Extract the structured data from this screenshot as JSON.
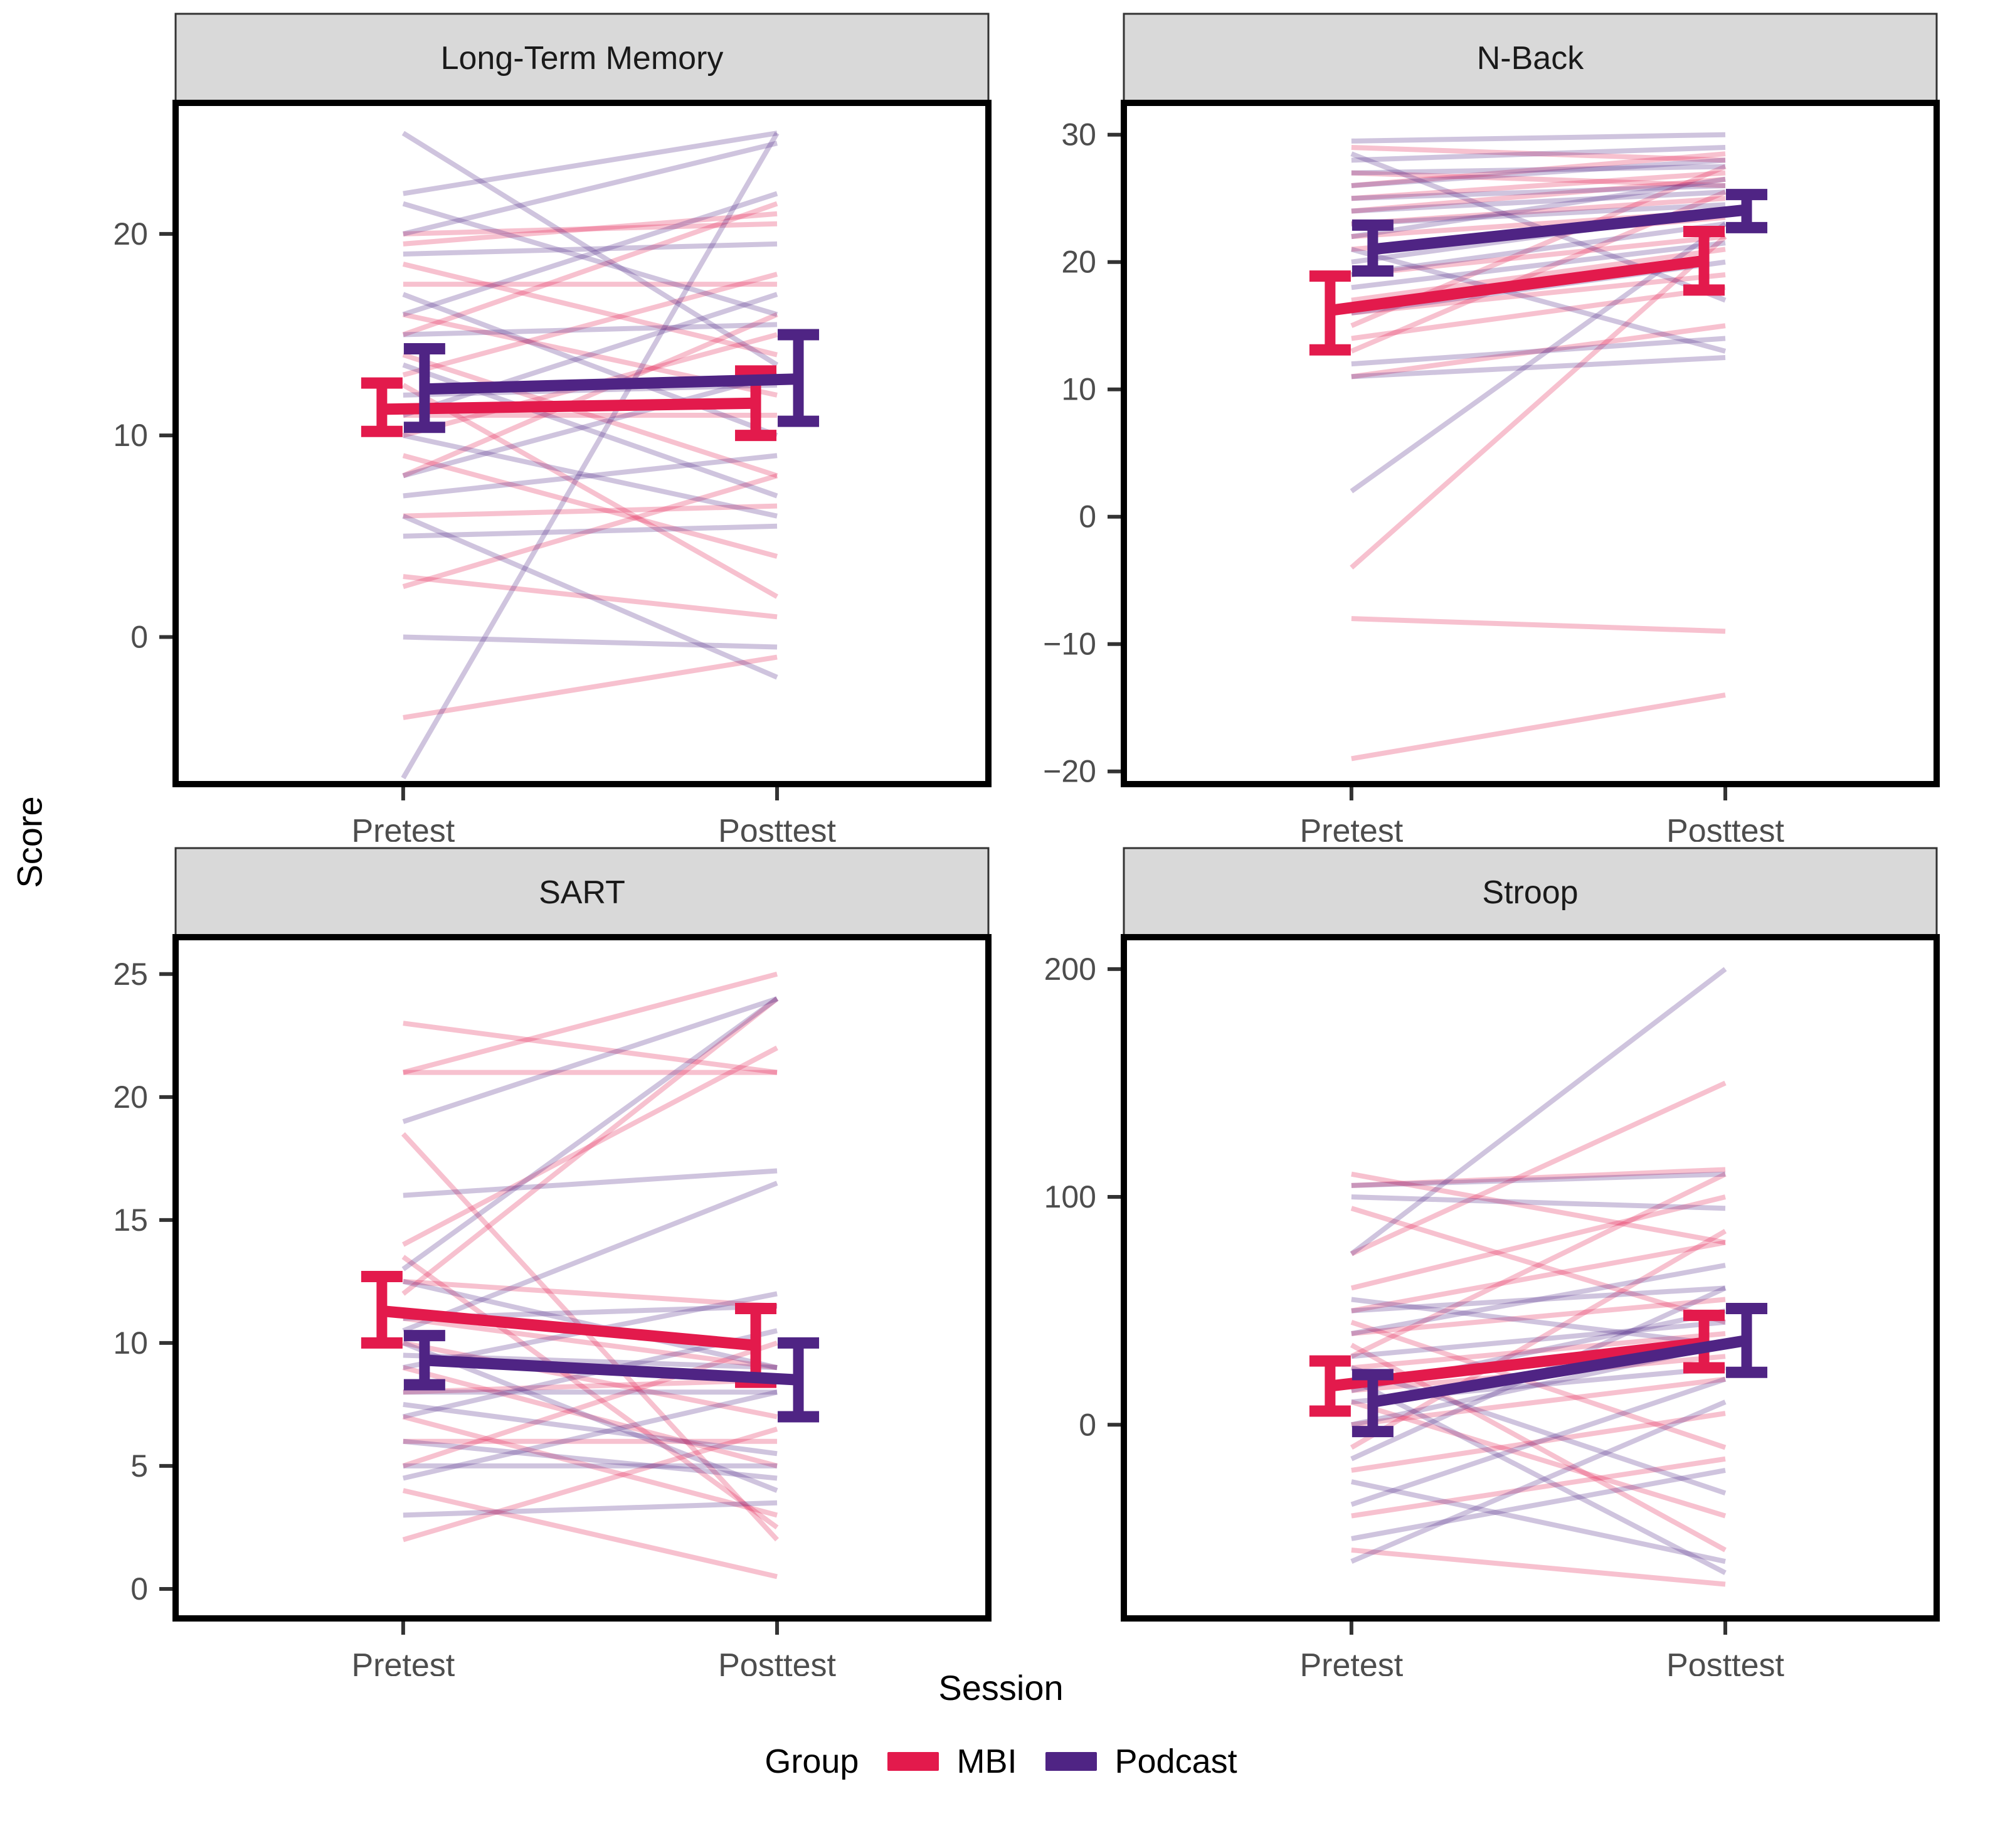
{
  "axes": {
    "y_title": "Score",
    "x_title": "Session",
    "x_categories": [
      "Pretest",
      "Posttest"
    ]
  },
  "legend": {
    "title": "Group",
    "position": "bottom",
    "items": [
      {
        "label": "MBI",
        "color": "#E31A4C"
      },
      {
        "label": "Podcast",
        "color": "#4F2484"
      }
    ]
  },
  "colors": {
    "mbi": "#E31A4C",
    "podcast": "#4F2484",
    "strip_fill": "#D9D9D9",
    "strip_border": "#333333",
    "panel_border": "#000000",
    "tick_text": "#4D4D4D",
    "tick_mark": "#333333"
  },
  "chart_data": [
    {
      "type": "line",
      "title": "Long-Term Memory",
      "xlabel": "Session",
      "ylabel": "Score",
      "x": [
        "Pretest",
        "Posttest"
      ],
      "ylim": [
        -7.3,
        26.5
      ],
      "yticks": [
        0,
        10,
        20
      ],
      "grid": false,
      "means": {
        "MBI": {
          "pre": {
            "m": 11.3,
            "lo": 10.2,
            "hi": 12.6
          },
          "post": {
            "m": 11.6,
            "lo": 10.0,
            "hi": 13.2
          }
        },
        "Podcast": {
          "pre": {
            "m": 12.3,
            "lo": 10.4,
            "hi": 14.3
          },
          "post": {
            "m": 12.8,
            "lo": 10.7,
            "hi": 15.0
          }
        }
      },
      "individuals": [
        {
          "g": "MBI",
          "pre": 19.5,
          "post": 21
        },
        {
          "g": "MBI",
          "pre": 18.5,
          "post": 14
        },
        {
          "g": "MBI",
          "pre": 17.5,
          "post": 17.5
        },
        {
          "g": "MBI",
          "pre": 16,
          "post": 12
        },
        {
          "g": "MBI",
          "pre": 15,
          "post": 21.5
        },
        {
          "g": "MBI",
          "pre": 14,
          "post": 8
        },
        {
          "g": "MBI",
          "pre": 13,
          "post": 18
        },
        {
          "g": "MBI",
          "pre": 12.5,
          "post": 2
        },
        {
          "g": "MBI",
          "pre": 11,
          "post": 11
        },
        {
          "g": "MBI",
          "pre": 10,
          "post": 15
        },
        {
          "g": "MBI",
          "pre": 9,
          "post": 4
        },
        {
          "g": "MBI",
          "pre": 8,
          "post": 16
        },
        {
          "g": "MBI",
          "pre": 6,
          "post": 6.5
        },
        {
          "g": "MBI",
          "pre": 3,
          "post": 1
        },
        {
          "g": "MBI",
          "pre": 2.5,
          "post": 8
        },
        {
          "g": "MBI",
          "pre": -4,
          "post": -1
        },
        {
          "g": "MBI",
          "pre": 20,
          "post": 20.5
        },
        {
          "g": "Podcast",
          "pre": 25,
          "post": 13.5
        },
        {
          "g": "Podcast",
          "pre": 22,
          "post": 25
        },
        {
          "g": "Podcast",
          "pre": 21.5,
          "post": 16
        },
        {
          "g": "Podcast",
          "pre": 20,
          "post": 24.5
        },
        {
          "g": "Podcast",
          "pre": 19,
          "post": 19.5
        },
        {
          "g": "Podcast",
          "pre": 17,
          "post": 10
        },
        {
          "g": "Podcast",
          "pre": 16,
          "post": 22
        },
        {
          "g": "Podcast",
          "pre": 15,
          "post": 15.5
        },
        {
          "g": "Podcast",
          "pre": 13.5,
          "post": 7
        },
        {
          "g": "Podcast",
          "pre": 12,
          "post": 12.5
        },
        {
          "g": "Podcast",
          "pre": 11,
          "post": 17
        },
        {
          "g": "Podcast",
          "pre": 10,
          "post": 6
        },
        {
          "g": "Podcast",
          "pre": 8,
          "post": 13
        },
        {
          "g": "Podcast",
          "pre": 7,
          "post": 9
        },
        {
          "g": "Podcast",
          "pre": 5,
          "post": 5.5
        },
        {
          "g": "Podcast",
          "pre": 0,
          "post": -0.5
        },
        {
          "g": "Podcast",
          "pre": -7,
          "post": 25
        },
        {
          "g": "Podcast",
          "pre": 6,
          "post": -2
        }
      ]
    },
    {
      "type": "line",
      "title": "N-Back",
      "xlabel": "Session",
      "ylabel": "Score",
      "x": [
        "Pretest",
        "Posttest"
      ],
      "ylim": [
        -21,
        32.5
      ],
      "yticks": [
        -20,
        -10,
        0,
        10,
        20,
        30
      ],
      "grid": false,
      "means": {
        "MBI": {
          "pre": {
            "m": 16.2,
            "lo": 13.1,
            "hi": 18.9
          },
          "post": {
            "m": 20.1,
            "lo": 17.8,
            "hi": 22.4
          }
        },
        "Podcast": {
          "pre": {
            "m": 21.0,
            "lo": 19.3,
            "hi": 22.9
          },
          "post": {
            "m": 24.1,
            "lo": 22.7,
            "hi": 25.3
          }
        }
      },
      "individuals": [
        {
          "g": "MBI",
          "pre": 29,
          "post": 28
        },
        {
          "g": "MBI",
          "pre": 27,
          "post": 26
        },
        {
          "g": "MBI",
          "pre": 26,
          "post": 28.5
        },
        {
          "g": "MBI",
          "pre": 25,
          "post": 27
        },
        {
          "g": "MBI",
          "pre": 24,
          "post": 26.5
        },
        {
          "g": "MBI",
          "pre": 23,
          "post": 25
        },
        {
          "g": "MBI",
          "pre": 22,
          "post": 24
        },
        {
          "g": "MBI",
          "pre": 21,
          "post": 23.5
        },
        {
          "g": "MBI",
          "pre": 19,
          "post": 22
        },
        {
          "g": "MBI",
          "pre": 17,
          "post": 21
        },
        {
          "g": "MBI",
          "pre": 16,
          "post": 19
        },
        {
          "g": "MBI",
          "pre": 15,
          "post": 27.5
        },
        {
          "g": "MBI",
          "pre": 14,
          "post": 18
        },
        {
          "g": "MBI",
          "pre": 13,
          "post": 25.5
        },
        {
          "g": "MBI",
          "pre": 11,
          "post": 15
        },
        {
          "g": "MBI",
          "pre": -4,
          "post": 22
        },
        {
          "g": "MBI",
          "pre": -8,
          "post": -9
        },
        {
          "g": "MBI",
          "pre": -19,
          "post": -14
        },
        {
          "g": "Podcast",
          "pre": 29.5,
          "post": 30
        },
        {
          "g": "Podcast",
          "pre": 28,
          "post": 29
        },
        {
          "g": "Podcast",
          "pre": 27,
          "post": 27.5
        },
        {
          "g": "Podcast",
          "pre": 26,
          "post": 28
        },
        {
          "g": "Podcast",
          "pre": 25,
          "post": 26
        },
        {
          "g": "Podcast",
          "pre": 24,
          "post": 25.5
        },
        {
          "g": "Podcast",
          "pre": 23,
          "post": 24.5
        },
        {
          "g": "Podcast",
          "pre": 22,
          "post": 26.5
        },
        {
          "g": "Podcast",
          "pre": 21,
          "post": 13
        },
        {
          "g": "Podcast",
          "pre": 20,
          "post": 24
        },
        {
          "g": "Podcast",
          "pre": 19,
          "post": 23
        },
        {
          "g": "Podcast",
          "pre": 18,
          "post": 21.5
        },
        {
          "g": "Podcast",
          "pre": 16,
          "post": 20
        },
        {
          "g": "Podcast",
          "pre": 12,
          "post": 14
        },
        {
          "g": "Podcast",
          "pre": 11,
          "post": 12.5
        },
        {
          "g": "Podcast",
          "pre": 2,
          "post": 23
        },
        {
          "g": "Podcast",
          "pre": 28.5,
          "post": 17
        }
      ]
    },
    {
      "type": "line",
      "title": "SART",
      "xlabel": "Session",
      "ylabel": "Score",
      "x": [
        "Pretest",
        "Posttest"
      ],
      "ylim": [
        -1.2,
        26.5
      ],
      "yticks": [
        0,
        5,
        10,
        15,
        20,
        25
      ],
      "grid": false,
      "means": {
        "MBI": {
          "pre": {
            "m": 11.3,
            "lo": 10.0,
            "hi": 12.7
          },
          "post": {
            "m": 9.9,
            "lo": 8.4,
            "hi": 11.4
          }
        },
        "Podcast": {
          "pre": {
            "m": 9.3,
            "lo": 8.3,
            "hi": 10.3
          },
          "post": {
            "m": 8.5,
            "lo": 7.0,
            "hi": 10.0
          }
        }
      },
      "individuals": [
        {
          "g": "MBI",
          "pre": 23,
          "post": 21
        },
        {
          "g": "MBI",
          "pre": 21,
          "post": 25
        },
        {
          "g": "MBI",
          "pre": 21,
          "post": 21
        },
        {
          "g": "MBI",
          "pre": 18.5,
          "post": 2
        },
        {
          "g": "MBI",
          "pre": 14,
          "post": 22
        },
        {
          "g": "MBI",
          "pre": 13.5,
          "post": 2.5
        },
        {
          "g": "MBI",
          "pre": 12.5,
          "post": 11.5
        },
        {
          "g": "MBI",
          "pre": 12,
          "post": 24
        },
        {
          "g": "MBI",
          "pre": 11,
          "post": 9
        },
        {
          "g": "MBI",
          "pre": 10,
          "post": 7
        },
        {
          "g": "MBI",
          "pre": 9,
          "post": 5
        },
        {
          "g": "MBI",
          "pre": 8,
          "post": 8.5
        },
        {
          "g": "MBI",
          "pre": 7,
          "post": 3
        },
        {
          "g": "MBI",
          "pre": 6,
          "post": 6
        },
        {
          "g": "MBI",
          "pre": 5,
          "post": 10
        },
        {
          "g": "MBI",
          "pre": 4,
          "post": 0.5
        },
        {
          "g": "MBI",
          "pre": 2,
          "post": 6.5
        },
        {
          "g": "Podcast",
          "pre": 19,
          "post": 24
        },
        {
          "g": "Podcast",
          "pre": 16,
          "post": 17
        },
        {
          "g": "Podcast",
          "pre": 13,
          "post": 24
        },
        {
          "g": "Podcast",
          "pre": 12.5,
          "post": 9
        },
        {
          "g": "Podcast",
          "pre": 11,
          "post": 11.5
        },
        {
          "g": "Podcast",
          "pre": 10,
          "post": 4
        },
        {
          "g": "Podcast",
          "pre": 9.5,
          "post": 9
        },
        {
          "g": "Podcast",
          "pre": 9,
          "post": 12
        },
        {
          "g": "Podcast",
          "pre": 8,
          "post": 8
        },
        {
          "g": "Podcast",
          "pre": 7.5,
          "post": 5.5
        },
        {
          "g": "Podcast",
          "pre": 7,
          "post": 10.5
        },
        {
          "g": "Podcast",
          "pre": 6,
          "post": 4.5
        },
        {
          "g": "Podcast",
          "pre": 5,
          "post": 5
        },
        {
          "g": "Podcast",
          "pre": 4.5,
          "post": 8
        },
        {
          "g": "Podcast",
          "pre": 3,
          "post": 3.5
        },
        {
          "g": "Podcast",
          "pre": 10.5,
          "post": 16.5
        }
      ]
    },
    {
      "type": "line",
      "title": "Stroop",
      "xlabel": "Session",
      "ylabel": "Score",
      "x": [
        "Pretest",
        "Posttest"
      ],
      "ylim": [
        -85,
        214
      ],
      "yticks": [
        0,
        100,
        200
      ],
      "grid": false,
      "means": {
        "MBI": {
          "pre": {
            "m": 17,
            "lo": 6,
            "hi": 28
          },
          "post": {
            "m": 36,
            "lo": 25,
            "hi": 48
          }
        },
        "Podcast": {
          "pre": {
            "m": 10,
            "lo": -3,
            "hi": 22
          },
          "post": {
            "m": 37,
            "lo": 23,
            "hi": 51
          }
        }
      },
      "individuals": [
        {
          "g": "MBI",
          "pre": 110,
          "post": 80
        },
        {
          "g": "MBI",
          "pre": 105,
          "post": 112
        },
        {
          "g": "MBI",
          "pre": 95,
          "post": 45
        },
        {
          "g": "MBI",
          "pre": 75,
          "post": 150
        },
        {
          "g": "MBI",
          "pre": 60,
          "post": 100
        },
        {
          "g": "MBI",
          "pre": 50,
          "post": 80
        },
        {
          "g": "MBI",
          "pre": 45,
          "post": -10
        },
        {
          "g": "MBI",
          "pre": 40,
          "post": 55
        },
        {
          "g": "MBI",
          "pre": 30,
          "post": 110
        },
        {
          "g": "MBI",
          "pre": 25,
          "post": 40
        },
        {
          "g": "MBI",
          "pre": 15,
          "post": 30
        },
        {
          "g": "MBI",
          "pre": 10,
          "post": -40
        },
        {
          "g": "MBI",
          "pre": 0,
          "post": 20
        },
        {
          "g": "MBI",
          "pre": -10,
          "post": 85
        },
        {
          "g": "MBI",
          "pre": -20,
          "post": 5
        },
        {
          "g": "MBI",
          "pre": -40,
          "post": -15
        },
        {
          "g": "MBI",
          "pre": -55,
          "post": -70
        },
        {
          "g": "MBI",
          "pre": 35,
          "post": -55
        },
        {
          "g": "Podcast",
          "pre": 105,
          "post": 110
        },
        {
          "g": "Podcast",
          "pre": 100,
          "post": 95
        },
        {
          "g": "Podcast",
          "pre": 75,
          "post": 200
        },
        {
          "g": "Podcast",
          "pre": 55,
          "post": 35
        },
        {
          "g": "Podcast",
          "pre": 50,
          "post": 60
        },
        {
          "g": "Podcast",
          "pre": 40,
          "post": 70
        },
        {
          "g": "Podcast",
          "pre": 30,
          "post": 45
        },
        {
          "g": "Podcast",
          "pre": 25,
          "post": -30
        },
        {
          "g": "Podcast",
          "pre": 15,
          "post": 50
        },
        {
          "g": "Podcast",
          "pre": 10,
          "post": 25
        },
        {
          "g": "Podcast",
          "pre": 0,
          "post": 35
        },
        {
          "g": "Podcast",
          "pre": -15,
          "post": 60
        },
        {
          "g": "Podcast",
          "pre": -25,
          "post": -60
        },
        {
          "g": "Podcast",
          "pre": -35,
          "post": 20
        },
        {
          "g": "Podcast",
          "pre": -50,
          "post": -20
        },
        {
          "g": "Podcast",
          "pre": -60,
          "post": 10
        },
        {
          "g": "Podcast",
          "pre": 20,
          "post": -65
        }
      ]
    }
  ]
}
